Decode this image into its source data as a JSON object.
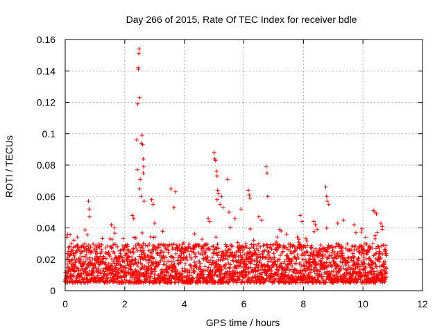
{
  "chart_data": {
    "type": "scatter",
    "title": "Day 266 of 2015, Rate Of TEC Index for receiver bdle",
    "xlabel": "GPS time / hours",
    "ylabel": "ROTI / TECUs",
    "xlim": [
      0,
      12
    ],
    "ylim": [
      0,
      0.16
    ],
    "x_ticks": [
      0,
      2,
      4,
      6,
      8,
      10,
      12
    ],
    "x_tick_labels": [
      "0",
      "2",
      "4",
      "6",
      "8",
      "10",
      "12"
    ],
    "y_ticks": [
      0,
      0.02,
      0.04,
      0.06,
      0.08,
      0.1,
      0.12,
      0.14,
      0.16
    ],
    "y_tick_labels": [
      "0",
      "0.02",
      "0.04",
      "0.06",
      "0.08",
      "0.1",
      "0.12",
      "0.14",
      "0.16"
    ],
    "grid": true,
    "marker": "+",
    "marker_color": "#ff0000",
    "data_range_hours": [
      0,
      10.8
    ],
    "dense_band": [
      0.005,
      0.03
    ],
    "series": [
      {
        "name": "ROTI",
        "peaks": [
          {
            "x": 0.05,
            "y": 0.034
          },
          {
            "x": 0.2,
            "y": 0.026
          },
          {
            "x": 0.78,
            "y": 0.057
          },
          {
            "x": 0.8,
            "y": 0.052
          },
          {
            "x": 0.82,
            "y": 0.047
          },
          {
            "x": 1.55,
            "y": 0.042
          },
          {
            "x": 1.65,
            "y": 0.04
          },
          {
            "x": 2.25,
            "y": 0.048
          },
          {
            "x": 2.3,
            "y": 0.046
          },
          {
            "x": 2.4,
            "y": 0.096
          },
          {
            "x": 2.42,
            "y": 0.077
          },
          {
            "x": 2.43,
            "y": 0.119
          },
          {
            "x": 2.45,
            "y": 0.142
          },
          {
            "x": 2.46,
            "y": 0.141
          },
          {
            "x": 2.47,
            "y": 0.151
          },
          {
            "x": 2.48,
            "y": 0.154
          },
          {
            "x": 2.5,
            "y": 0.123
          },
          {
            "x": 2.52,
            "y": 0.071
          },
          {
            "x": 2.55,
            "y": 0.094
          },
          {
            "x": 2.58,
            "y": 0.099
          },
          {
            "x": 2.6,
            "y": 0.093
          },
          {
            "x": 2.62,
            "y": 0.084
          },
          {
            "x": 2.62,
            "y": 0.075
          },
          {
            "x": 2.63,
            "y": 0.079
          },
          {
            "x": 2.55,
            "y": 0.06
          },
          {
            "x": 2.5,
            "y": 0.065
          },
          {
            "x": 2.65,
            "y": 0.057
          },
          {
            "x": 2.9,
            "y": 0.058
          },
          {
            "x": 2.95,
            "y": 0.055
          },
          {
            "x": 3.0,
            "y": 0.043
          },
          {
            "x": 3.55,
            "y": 0.065
          },
          {
            "x": 3.65,
            "y": 0.053
          },
          {
            "x": 3.7,
            "y": 0.063
          },
          {
            "x": 4.8,
            "y": 0.046
          },
          {
            "x": 4.85,
            "y": 0.044
          },
          {
            "x": 5.0,
            "y": 0.088
          },
          {
            "x": 5.02,
            "y": 0.084
          },
          {
            "x": 5.05,
            "y": 0.083
          },
          {
            "x": 5.08,
            "y": 0.076
          },
          {
            "x": 5.1,
            "y": 0.073
          },
          {
            "x": 5.12,
            "y": 0.064
          },
          {
            "x": 5.15,
            "y": 0.062
          },
          {
            "x": 5.1,
            "y": 0.058
          },
          {
            "x": 5.2,
            "y": 0.055
          },
          {
            "x": 5.25,
            "y": 0.06
          },
          {
            "x": 5.3,
            "y": 0.053
          },
          {
            "x": 5.45,
            "y": 0.071
          },
          {
            "x": 5.5,
            "y": 0.05
          },
          {
            "x": 5.7,
            "y": 0.046
          },
          {
            "x": 5.9,
            "y": 0.052
          },
          {
            "x": 6.15,
            "y": 0.064
          },
          {
            "x": 6.18,
            "y": 0.061
          },
          {
            "x": 6.2,
            "y": 0.059
          },
          {
            "x": 6.5,
            "y": 0.047
          },
          {
            "x": 6.6,
            "y": 0.045
          },
          {
            "x": 6.75,
            "y": 0.079
          },
          {
            "x": 6.78,
            "y": 0.075
          },
          {
            "x": 6.8,
            "y": 0.06
          },
          {
            "x": 7.2,
            "y": 0.039
          },
          {
            "x": 7.25,
            "y": 0.038
          },
          {
            "x": 7.9,
            "y": 0.048
          },
          {
            "x": 7.95,
            "y": 0.044
          },
          {
            "x": 8.35,
            "y": 0.044
          },
          {
            "x": 8.4,
            "y": 0.042
          },
          {
            "x": 8.75,
            "y": 0.066
          },
          {
            "x": 8.78,
            "y": 0.06
          },
          {
            "x": 8.8,
            "y": 0.057
          },
          {
            "x": 8.85,
            "y": 0.055
          },
          {
            "x": 9.15,
            "y": 0.043
          },
          {
            "x": 9.35,
            "y": 0.045
          },
          {
            "x": 9.7,
            "y": 0.042
          },
          {
            "x": 10.1,
            "y": 0.034
          },
          {
            "x": 10.35,
            "y": 0.051
          },
          {
            "x": 10.4,
            "y": 0.05
          },
          {
            "x": 10.45,
            "y": 0.049
          },
          {
            "x": 10.6,
            "y": 0.043
          },
          {
            "x": 10.65,
            "y": 0.041
          }
        ]
      }
    ]
  }
}
